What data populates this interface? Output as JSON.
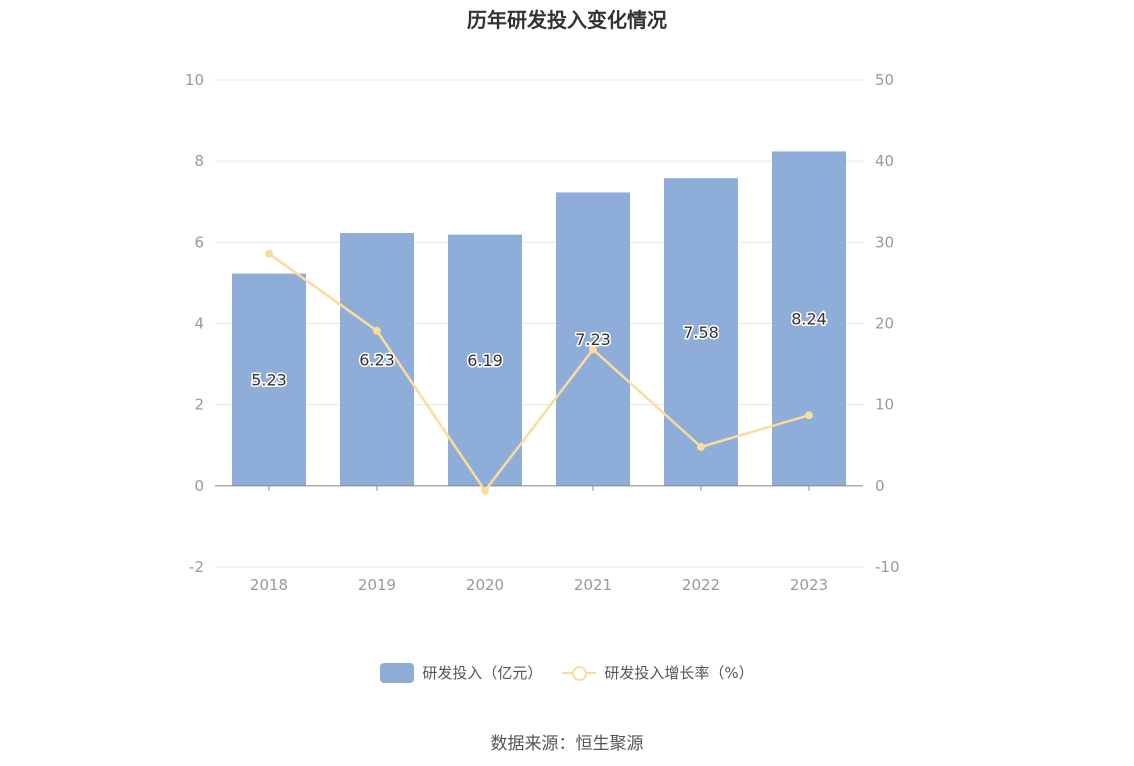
{
  "title": "历年研发投入变化情况",
  "source": "数据来源：恒生聚源",
  "colors": {
    "bar": "#8eadd9",
    "line": "#fcdb9c",
    "grid": "#e3e6f0",
    "axis": "#888888",
    "tick": "#999999"
  },
  "chart_data": {
    "type": "bar",
    "categories": [
      "2018",
      "2019",
      "2020",
      "2021",
      "2022",
      "2023"
    ],
    "series": [
      {
        "name": "研发投入（亿元）",
        "type": "bar",
        "axis": "left",
        "values": [
          5.23,
          6.23,
          6.19,
          7.23,
          7.58,
          8.24
        ],
        "labels": [
          "5.23",
          "6.23",
          "6.19",
          "7.23",
          "7.58",
          "8.24"
        ]
      },
      {
        "name": "研发投入增长率（%）",
        "type": "line",
        "axis": "right",
        "values": [
          28.6,
          19.1,
          -0.6,
          16.8,
          4.8,
          8.7
        ]
      }
    ],
    "y_left": {
      "min": -2,
      "max": 10,
      "ticks": [
        "-2",
        "0",
        "2",
        "4",
        "6",
        "8",
        "10"
      ]
    },
    "y_right": {
      "min": -10,
      "max": 50,
      "ticks": [
        "-10",
        "0",
        "10",
        "20",
        "30",
        "40",
        "50"
      ]
    },
    "grid": true,
    "legend": "bottom-center"
  }
}
